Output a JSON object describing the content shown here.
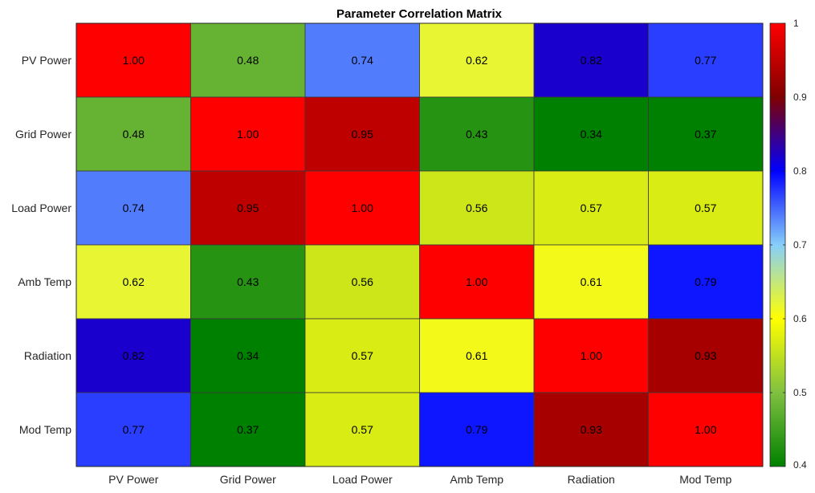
{
  "chart_data": {
    "type": "heatmap",
    "title": "Parameter Correlation Matrix",
    "rows": [
      "PV Power",
      "Grid Power",
      "Load Power",
      "Amb Temp",
      "Radiation",
      "Mod Temp"
    ],
    "columns": [
      "PV Power",
      "Grid Power",
      "Load Power",
      "Amb Temp",
      "Radiation",
      "Mod Temp"
    ],
    "values": [
      [
        1.0,
        0.48,
        0.74,
        0.62,
        0.82,
        0.77
      ],
      [
        0.48,
        1.0,
        0.95,
        0.43,
        0.34,
        0.37
      ],
      [
        0.74,
        0.95,
        1.0,
        0.56,
        0.57,
        0.57
      ],
      [
        0.62,
        0.43,
        0.56,
        1.0,
        0.61,
        0.79
      ],
      [
        0.82,
        0.34,
        0.57,
        0.61,
        1.0,
        0.93
      ],
      [
        0.77,
        0.37,
        0.57,
        0.79,
        0.93,
        1.0
      ]
    ],
    "value_labels": [
      [
        "1.00",
        "0.48",
        "0.74",
        "0.62",
        "0.82",
        "0.77"
      ],
      [
        "0.48",
        "1.00",
        "0.95",
        "0.43",
        "0.34",
        "0.37"
      ],
      [
        "0.74",
        "0.95",
        "1.00",
        "0.56",
        "0.57",
        "0.57"
      ],
      [
        "0.62",
        "0.43",
        "0.56",
        "1.00",
        "0.61",
        "0.79"
      ],
      [
        "0.82",
        "0.34",
        "0.57",
        "0.61",
        "1.00",
        "0.93"
      ],
      [
        "0.77",
        "0.37",
        "0.57",
        "0.79",
        "0.93",
        "1.00"
      ]
    ],
    "colorbar": {
      "range": [
        0.4,
        1
      ],
      "ticks": [
        0.4,
        0.5,
        0.6,
        0.7,
        0.8,
        0.9,
        1
      ],
      "tick_labels": [
        "0.4",
        "0.5",
        "0.6",
        "0.7",
        "0.8",
        "0.9",
        "1"
      ],
      "placement": "right",
      "colormap": [
        [
          0.4,
          "#008000"
        ],
        [
          0.5,
          "#80c040"
        ],
        [
          0.6,
          "#ffff00"
        ],
        [
          0.7,
          "#87cefa"
        ],
        [
          0.8,
          "#0000ff"
        ],
        [
          0.9,
          "#800000"
        ],
        [
          1.0,
          "#ff0000"
        ]
      ]
    },
    "cell_border_color": "#3a3a3a",
    "grid": false
  }
}
